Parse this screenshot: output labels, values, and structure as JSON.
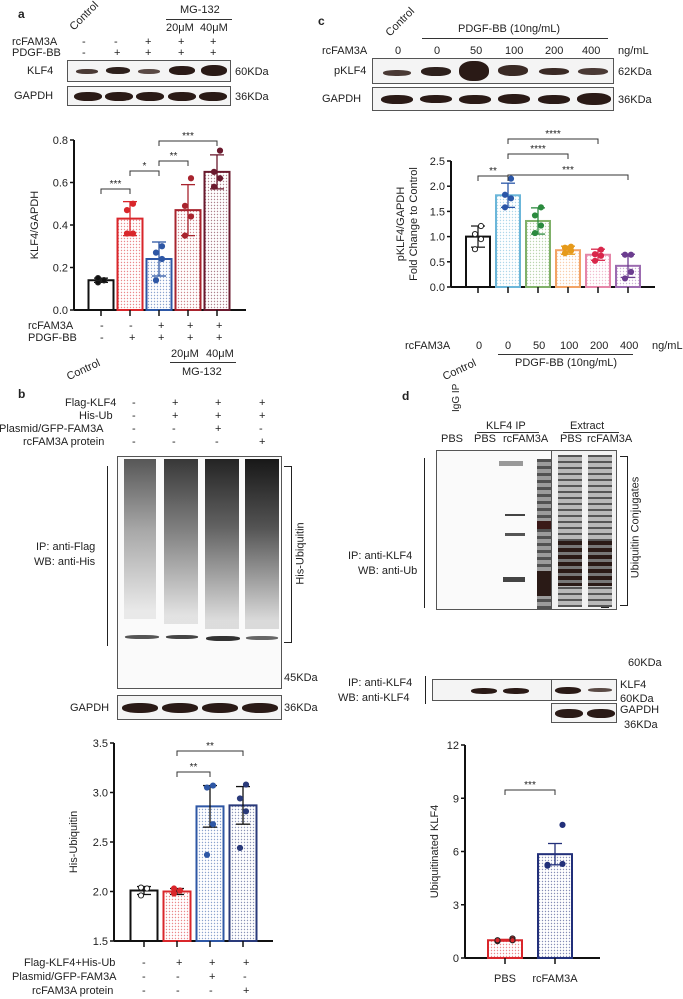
{
  "panels": {
    "a": {
      "letter": "a",
      "blot": {
        "top_labels": {
          "control": "Control",
          "inhibitor": "MG-132",
          "conc1": "20μM",
          "conc2": "40μM"
        },
        "row_labels": {
          "rcfam3a": "rcFAM3A",
          "pdgf": "PDGF-BB"
        },
        "rcfam3a_signs": [
          "-",
          "-",
          "+",
          "+",
          "+"
        ],
        "pdgf_signs": [
          "-",
          "+",
          "+",
          "+",
          "+"
        ],
        "bands": [
          {
            "name": "KLF4",
            "size": "60KDa"
          },
          {
            "name": "GAPDH",
            "size": "36KDa"
          }
        ]
      },
      "axis_labels": {
        "rcfam3a": "rcFAM3A",
        "pdgf": "PDGF-BB",
        "control": "Control",
        "conc1": "20μM",
        "conc2": "40μM",
        "inhibitor": "MG-132"
      }
    },
    "b": {
      "letter": "b",
      "blot": {
        "row_labels": [
          "Flag-KLF4",
          "His-Ub",
          "Plasmid/GFP-FAM3A",
          "rcFAM3A protein"
        ],
        "signs": [
          [
            "-",
            "+",
            "+",
            "+"
          ],
          [
            "-",
            "+",
            "+",
            "+"
          ],
          [
            "-",
            "-",
            "+",
            "-"
          ],
          [
            "-",
            "-",
            "-",
            "+"
          ]
        ],
        "ip_label": "IP: anti-Flag",
        "wb_label": "WB: anti-His",
        "bracket_label": "His-Ubiquitin",
        "marker": "45KDa",
        "loading": {
          "name": "GAPDH",
          "size": "36KDa"
        }
      },
      "axis_rows": {
        "labels": [
          "Flag-KLF4+His-Ub",
          "Plasmid/GFP-FAM3A",
          "rcFAM3A protein"
        ],
        "signs": [
          [
            "-",
            "+",
            "+",
            "+"
          ],
          [
            "-",
            "-",
            "+",
            "-"
          ],
          [
            "-",
            "-",
            "-",
            "+"
          ]
        ]
      }
    },
    "c": {
      "letter": "c",
      "blot": {
        "control": "Control",
        "treatment": "PDGF-BB (10ng/mL)",
        "row_label": "rcFAM3A",
        "doses": [
          "0",
          "0",
          "50",
          "100",
          "200",
          "400"
        ],
        "unit": "ng/mL",
        "bands": [
          {
            "name": "pKLF4",
            "size": "62KDa"
          },
          {
            "name": "GAPDH",
            "size": "36KDa"
          }
        ]
      },
      "axis_labels": {
        "row": "rcFAM3A",
        "doses": [
          "0",
          "0",
          "50",
          "100",
          "200",
          "400"
        ],
        "unit": "ng/mL",
        "control": "Control",
        "treatment": "PDGF-BB (10ng/mL)"
      }
    },
    "d": {
      "letter": "d",
      "blot": {
        "igg": "IgG IP",
        "klf4ip": "KLF4 IP",
        "extract": "Extract",
        "lanes": [
          "PBS",
          "PBS",
          "rcFAM3A",
          "PBS",
          "rcFAM3A"
        ],
        "ip_label": "IP: anti-KLF4",
        "wb_label": "WB: anti-Ub",
        "ip_label2": "IP: anti-KLF4",
        "wb_label2": "WB: anti-KLF4",
        "bracket_label": "Ubiquitin Conjugates",
        "marker": "60KDa",
        "klf4": "KLF4",
        "klf4_size": "60KDa",
        "gapdh": "GAPDH",
        "gapdh_size": "36KDa"
      }
    }
  },
  "chart_data": [
    {
      "id": "a",
      "type": "bar",
      "title": "",
      "ylabel": "KLF4/GAPDH",
      "xlabel": "",
      "ylim": [
        0,
        0.8
      ],
      "yticks": [
        "0.0",
        "0.2",
        "0.4",
        "0.6",
        "0.8"
      ],
      "categories": [
        "Control",
        "PDGF-BB",
        "PDGF-BB+rcFAM3A",
        "PDGF-BB+rcFAM3A+MG-132 20μM",
        "PDGF-BB+rcFAM3A+MG-132 40μM"
      ],
      "values": [
        0.14,
        0.43,
        0.24,
        0.47,
        0.65
      ],
      "errors": [
        0.01,
        0.08,
        0.08,
        0.12,
        0.08
      ],
      "points": [
        [
          0.13,
          0.14,
          0.15,
          0.14
        ],
        [
          0.36,
          0.36,
          0.47,
          0.5
        ],
        [
          0.14,
          0.24,
          0.27,
          0.3
        ],
        [
          0.35,
          0.44,
          0.49,
          0.62
        ],
        [
          0.58,
          0.62,
          0.65,
          0.75
        ]
      ],
      "colors": [
        "#111111",
        "#d9262b",
        "#2e57a5",
        "#a8242e",
        "#6a1a2e"
      ],
      "significance": [
        {
          "from": 0,
          "to": 1,
          "label": "***"
        },
        {
          "from": 1,
          "to": 2,
          "label": "*"
        },
        {
          "from": 2,
          "to": 3,
          "label": "**"
        },
        {
          "from": 2,
          "to": 4,
          "label": "***"
        }
      ],
      "grid": false
    },
    {
      "id": "b",
      "type": "bar",
      "title": "",
      "ylabel": "His-Ubiquitin",
      "xlabel": "",
      "ylim": [
        1.5,
        3.5
      ],
      "yticks": [
        "1.5",
        "2.0",
        "2.5",
        "3.0",
        "3.5"
      ],
      "categories": [
        "Control",
        "Flag-KLF4+His-Ub",
        "+Plasmid/GFP-FAM3A",
        "+rcFAM3A protein"
      ],
      "values": [
        2.01,
        2.0,
        2.86,
        2.87
      ],
      "errors": [
        0.04,
        0.03,
        0.21,
        0.19
      ],
      "points": [
        [
          1.96,
          2.03,
          2.04
        ],
        [
          1.98,
          2.01,
          2.03
        ],
        [
          2.37,
          2.68,
          3.05,
          3.07
        ],
        [
          2.44,
          2.81,
          2.94,
          3.08
        ]
      ],
      "colors": [
        "#111111",
        "#d9262b",
        "#2e57a5",
        "#2a3a7a"
      ],
      "significance": [
        {
          "from": 1,
          "to": 2,
          "label": "**"
        },
        {
          "from": 1,
          "to": 3,
          "label": "**"
        }
      ],
      "grid": false
    },
    {
      "id": "c",
      "type": "bar",
      "title": "",
      "ylabel": "pKLF4/GAPDH Fold Change to Control",
      "xlabel": "rcFAM3A (ng/mL)",
      "ylim": [
        0,
        2.5
      ],
      "yticks": [
        "0.0",
        "0.5",
        "1.0",
        "1.5",
        "2.0",
        "2.5"
      ],
      "categories": [
        "Control 0",
        "PDGF-BB 0",
        "PDGF-BB 50",
        "PDGF-BB 100",
        "PDGF-BB 200",
        "PDGF-BB 400"
      ],
      "values": [
        1.0,
        1.82,
        1.31,
        0.73,
        0.64,
        0.42
      ],
      "errors": [
        0.21,
        0.24,
        0.26,
        0.08,
        0.11,
        0.23
      ],
      "points": [
        [
          0.75,
          0.95,
          1.05,
          1.21
        ],
        [
          1.58,
          1.76,
          1.83,
          2.15
        ],
        [
          1.07,
          1.22,
          1.42,
          1.58
        ],
        [
          0.67,
          0.72,
          0.78,
          0.8
        ],
        [
          0.52,
          0.62,
          0.65,
          0.74
        ],
        [
          0.17,
          0.3,
          0.64,
          0.64
        ]
      ],
      "colors": [
        "#111111",
        "#6bb6d9",
        "#7fb069",
        "#f2a365",
        "#e585a8",
        "#9c6bb0"
      ],
      "marker_colors": [
        "#444444",
        "#2a57a8",
        "#2b8a3e",
        "#e69a1a",
        "#d9264a",
        "#6b3d8f"
      ],
      "significance": [
        {
          "from": 0,
          "to": 1,
          "label": "**"
        },
        {
          "from": 1,
          "to": 5,
          "label": "***"
        },
        {
          "from": 1,
          "to": 3,
          "label": "****"
        },
        {
          "from": 1,
          "to": 4,
          "label": "****"
        }
      ],
      "grid": false
    },
    {
      "id": "d",
      "type": "bar",
      "title": "",
      "ylabel": "Ubiquitinated KLF4",
      "xlabel": "",
      "ylim": [
        0,
        12
      ],
      "yticks": [
        "0",
        "3",
        "6",
        "9",
        "12"
      ],
      "categories": [
        "PBS",
        "rcFAM3A"
      ],
      "values": [
        1.0,
        5.85
      ],
      "errors": [
        0.05,
        0.6
      ],
      "points": [
        [
          0.95,
          1.1,
          1.0,
          1.0
        ],
        [
          5.2,
          5.3,
          5.25,
          7.5
        ]
      ],
      "colors": [
        "#d9262b",
        "#22307a"
      ],
      "significance": [
        {
          "from": 0,
          "to": 1,
          "label": "***"
        }
      ],
      "grid": false
    }
  ]
}
